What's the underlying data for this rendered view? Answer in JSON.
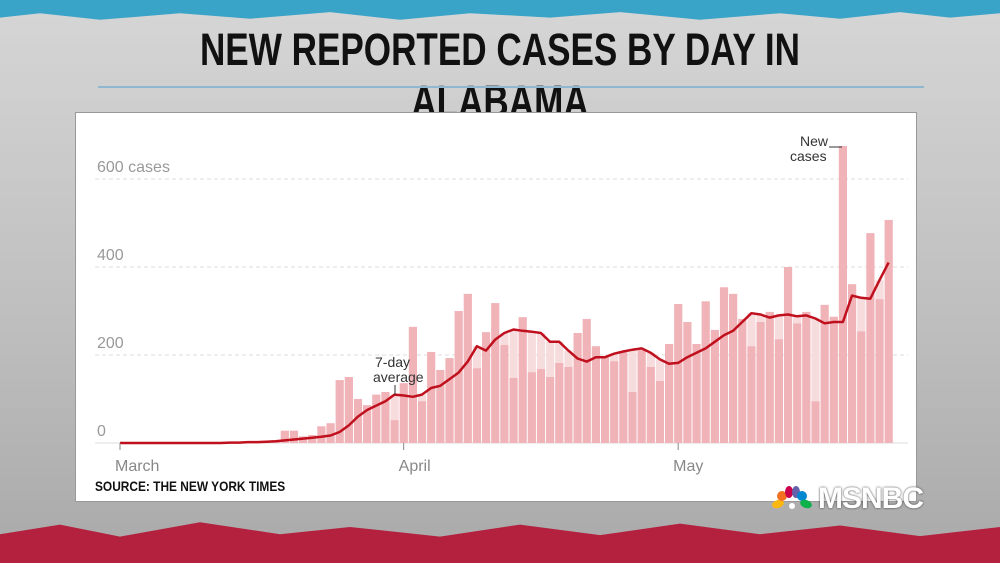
{
  "title": "NEW REPORTED CASES BY DAY IN ALABAMA",
  "source": "SOURCE: THE NEW YORK TIMES",
  "logo": "MSNBC",
  "colors": {
    "bar": "#f0b3b8",
    "bar_light": "#f7dcde",
    "line": "#c0101e",
    "top_strip": "#3aa3c8",
    "bottom_strip": "#b3213f"
  },
  "chart_data": {
    "type": "bar",
    "x_start": "March 1",
    "x_end": "May 24",
    "x_ticks": [
      {
        "label": "March",
        "day": "March 1"
      },
      {
        "label": "April",
        "day": "April 1"
      },
      {
        "label": "May",
        "day": "May 1"
      }
    ],
    "y_ticks": [
      {
        "value": 0,
        "label": "0"
      },
      {
        "value": 200,
        "label": "200"
      },
      {
        "value": 400,
        "label": "400"
      },
      {
        "value": 600,
        "label": "600 cases"
      }
    ],
    "ylim": [
      0,
      700
    ],
    "grid": true,
    "annotations": [
      {
        "text": "7-day",
        "text2": "average",
        "day": "March 30"
      },
      {
        "text": "New",
        "text2": "cases",
        "day": "May 19"
      }
    ],
    "series": [
      {
        "name": "New cases",
        "type": "bar",
        "values": [
          0,
          0,
          0,
          0,
          0,
          0,
          0,
          0,
          0,
          0,
          0,
          0,
          1,
          2,
          3,
          3,
          5,
          6,
          28,
          28,
          15,
          18,
          38,
          45,
          143,
          150,
          100,
          86,
          110,
          116,
          52,
          136,
          264,
          95,
          207,
          166,
          193,
          300,
          339,
          170,
          252,
          318,
          223,
          148,
          286,
          161,
          168,
          150,
          182,
          173,
          250,
          282,
          220,
          195,
          186,
          207,
          116,
          211,
          173,
          141,
          225,
          316,
          275,
          225,
          322,
          257,
          354,
          339,
          282,
          220,
          275,
          298,
          236,
          400,
          272,
          298,
          95,
          314,
          287,
          675,
          361,
          254,
          477,
          327,
          507
        ]
      },
      {
        "name": "7-day average",
        "type": "line",
        "values": [
          0,
          0,
          0,
          0,
          0,
          0,
          0,
          0,
          0,
          0,
          0,
          0,
          1,
          1,
          2,
          2,
          3,
          4,
          6,
          8,
          10,
          12,
          14,
          17,
          25,
          40,
          60,
          75,
          85,
          95,
          110,
          108,
          105,
          110,
          125,
          130,
          145,
          160,
          185,
          220,
          210,
          235,
          250,
          258,
          255,
          253,
          250,
          230,
          230,
          210,
          192,
          185,
          195,
          195,
          203,
          208,
          212,
          215,
          205,
          190,
          180,
          182,
          195,
          205,
          215,
          230,
          245,
          255,
          275,
          295,
          292,
          285,
          290,
          292,
          288,
          290,
          283,
          272,
          275,
          275,
          335,
          330,
          328,
          370,
          410
        ]
      }
    ]
  }
}
